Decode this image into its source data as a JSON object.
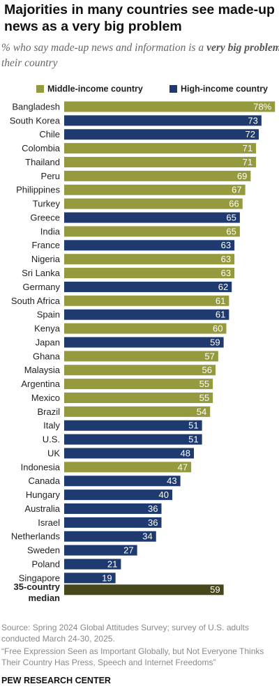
{
  "chart_data": {
    "type": "bar",
    "orientation": "horizontal",
    "title": "Majorities in many countries see made-up news as a very big problem",
    "subtitle": [
      "% who say made-up news and information is a ",
      "very big problem",
      " in their country"
    ],
    "categories": [
      "Bangladesh",
      "South Korea",
      "Chile",
      "Colombia",
      "Thailand",
      "Peru",
      "Philippines",
      "Turkey",
      "Greece",
      "India",
      "France",
      "Nigeria",
      "Sri Lanka",
      "Germany",
      "South Africa",
      "Spain",
      "Kenya",
      "Japan",
      "Ghana",
      "Malaysia",
      "Argentina",
      "Mexico",
      "Brazil",
      "Italy",
      "U.S.",
      "UK",
      "Indonesia",
      "Canada",
      "Hungary",
      "Australia",
      "Israel",
      "Netherlands",
      "Sweden",
      "Poland",
      "Singapore"
    ],
    "series": [
      {
        "name": "Middle-income country",
        "color": "#949a3d",
        "values": [
          78,
          null,
          null,
          71,
          71,
          69,
          67,
          66,
          null,
          65,
          null,
          63,
          63,
          null,
          61,
          null,
          60,
          null,
          57,
          56,
          55,
          55,
          54,
          null,
          null,
          null,
          47,
          null,
          null,
          null,
          null,
          null,
          null,
          null,
          null
        ],
        "value_labels": [
          "78%",
          null,
          null,
          null,
          null,
          null,
          null,
          null,
          null,
          null,
          null,
          null,
          null,
          null,
          null,
          null,
          null,
          null,
          null,
          null,
          null,
          null,
          null,
          null,
          null,
          null,
          null,
          null,
          null,
          null,
          null,
          null,
          null,
          null,
          null
        ]
      },
      {
        "name": "High-income country",
        "color": "#1f3a6e",
        "values": [
          null,
          73,
          72,
          null,
          null,
          null,
          null,
          null,
          65,
          null,
          63,
          null,
          null,
          62,
          null,
          61,
          null,
          59,
          null,
          null,
          null,
          null,
          null,
          51,
          51,
          48,
          null,
          43,
          40,
          36,
          36,
          34,
          27,
          21,
          19
        ]
      }
    ],
    "median": {
      "label": [
        "35-country",
        "median"
      ],
      "value": 59,
      "color": "#47471c"
    },
    "xlim": [
      0,
      80
    ],
    "source": [
      "Source: Spring 2024 Global Attitudes Survey; survey of U.S. adults conducted March 24-30, 2025.",
      "“Free Expression Seen as Important Globally, but Not Everyone Thinks Their Country Has Press, Speech and Internet Freedoms”"
    ],
    "footer": "PEW RESEARCH CENTER"
  }
}
